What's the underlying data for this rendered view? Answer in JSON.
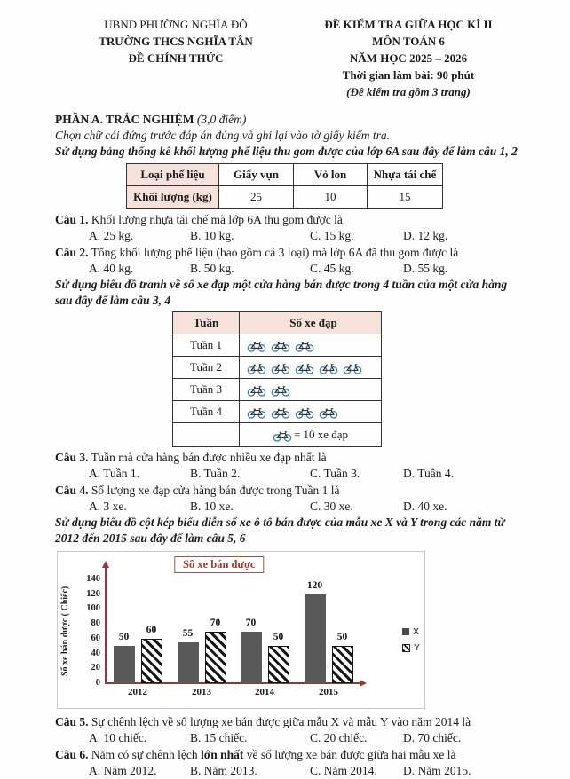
{
  "header": {
    "left": {
      "line1": "UBND PHƯỜNG NGHĨA ĐÔ",
      "line2": "TRƯỜNG THCS NGHĨA TÂN",
      "line3": "ĐỀ CHÍNH THỨC"
    },
    "right": {
      "line1": "ĐỀ KIỂM TRA GIỮA HỌC KÌ II",
      "line2": "MÔN TOÁN 6",
      "line3": "NĂM HỌC 2025 – 2026",
      "line4": "Thời gian làm bài: 90 phút",
      "line5": "(Đề kiểm tra gồm 3 trang)"
    }
  },
  "section_a": {
    "title": "PHẦN A. TRẮC NGHIỆM",
    "points": "(3,0 điểm)",
    "instruction": "Chọn chữ cái đứng trước đáp án đúng và ghi lại vào tờ giấy kiểm tra.",
    "lead_table": "Sử dụng bảng thống kê khối lượng phế liệu thu gom được của lớp 6A sau đây để làm câu 1, 2",
    "lead_picto": "Sử dụng biểu đồ tranh về số xe đạp một cửa hàng bán được trong 4 tuần của một cửa hàng sau đây để làm câu 3, 4",
    "lead_chart": "Sử dụng biểu đồ cột kép biểu diễn số xe ô tô bán được của mẫu xe X và Y trong các năm từ 2012 đến 2015 sau đây để làm câu 5, 6"
  },
  "scrap_table": {
    "col_headers": [
      "Loại phế liệu",
      "Giấy vụn",
      "Vỏ lon",
      "Nhựa tái chế"
    ],
    "row_label": "Khối lượng (kg)",
    "values": [
      "25",
      "10",
      "15"
    ]
  },
  "picto_table": {
    "col_headers": [
      "Tuần",
      "Số xe đạp"
    ],
    "icon_name": "bicycle-icon",
    "unit_per_icon": 10,
    "rows": [
      {
        "label": "Tuần 1",
        "icons": 3
      },
      {
        "label": "Tuần 2",
        "icons": 5
      },
      {
        "label": "Tuần 3",
        "icons": 2
      },
      {
        "label": "Tuần 4",
        "icons": 4
      }
    ],
    "legend_text": "= 10  xe đạp"
  },
  "questions": [
    {
      "label": "Câu 1.",
      "text": "Khối lượng nhựa tái chế mà lớp 6A thu gom được là",
      "options": [
        "A. 25 kg.",
        "B. 10 kg.",
        "C. 15 kg.",
        "D. 12 kg."
      ]
    },
    {
      "label": "Câu 2.",
      "text": "Tổng khối lượng phế liệu (bao gồm cả 3 loại) mà lớp 6A đã thu gom được là",
      "options": [
        "A. 40 kg.",
        "B. 50 kg.",
        "C. 45 kg.",
        "D. 55 kg."
      ]
    },
    {
      "label": "Câu 3.",
      "text": "Tuần mà cửa hàng bán được nhiều xe đạp nhất là",
      "options": [
        "A. Tuần 1.",
        "B. Tuần 2.",
        "C. Tuần 3.",
        "D. Tuần 4."
      ]
    },
    {
      "label": "Câu 4.",
      "text": "Số lượng xe đạp cửa hàng bán được trong Tuần 1 là",
      "options": [
        "A. 3 xe.",
        "B. 10 xe.",
        "C. 30 xe.",
        "D. 40 xe."
      ]
    },
    {
      "label": "Câu 5.",
      "text": "Sự chênh lệch về số lượng xe bán được giữa mẫu X và mẫu Y vào năm 2014 là",
      "options": [
        "A. 10 chiếc.",
        "B. 15 chiếc.",
        "C. 20 chiếc.",
        "D. 70 chiếc."
      ]
    },
    {
      "label": "Câu 6.",
      "text_pre": "Năm có sự chênh lệch ",
      "text_bold": "lớn nhất",
      "text_post": " về số lượng xe bán được giữa hai mẫu xe là",
      "options": [
        "A. Năm 2012.",
        "B. Năm 2013.",
        "C. Năm 2014.",
        "D. Năm 2015."
      ]
    }
  ],
  "chart_data": {
    "type": "bar",
    "title": "Số xe bán được",
    "ylabel": "Số xe bán được ( Chiếc)",
    "xlabel": "",
    "categories": [
      "2012",
      "2013",
      "2014",
      "2015"
    ],
    "series": [
      {
        "name": "X",
        "values": [
          50,
          55,
          70,
          120
        ],
        "style": "solid",
        "color": "#595959"
      },
      {
        "name": "Y",
        "values": [
          60,
          70,
          50,
          50
        ],
        "style": "hatched",
        "color": "#161616"
      }
    ],
    "ylim": [
      0,
      140
    ],
    "ytick_step": 20,
    "grid": false,
    "legend_position": "right",
    "data_labels": true,
    "axis_color": "#953735"
  },
  "colors": {
    "table_header_bg": "#f6e2da",
    "chart_axis": "#953735",
    "bar_x": "#595959",
    "chart_border": "#c9c9c9"
  }
}
